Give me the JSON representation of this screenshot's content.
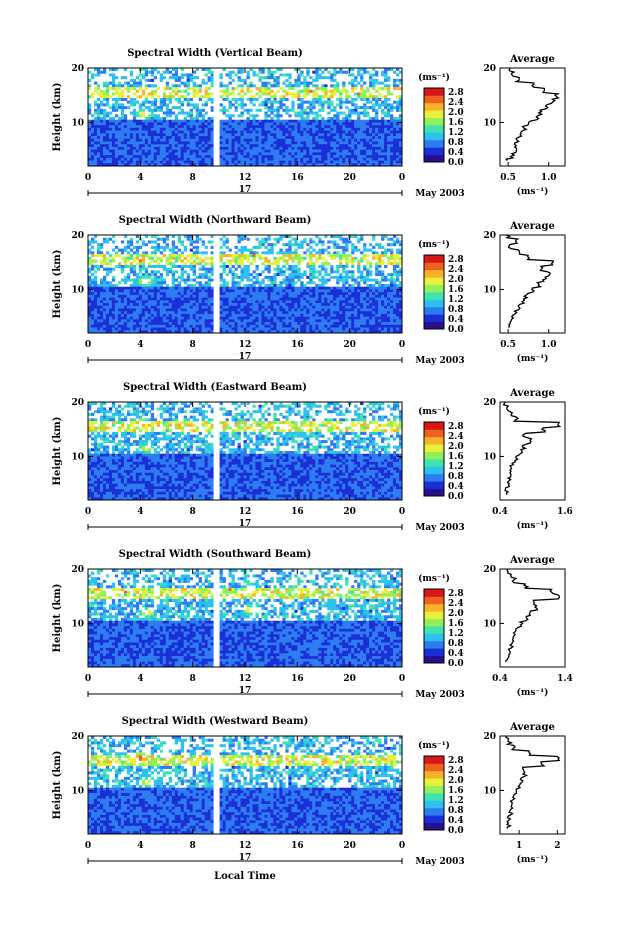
{
  "figure": {
    "month_label": "May 2003",
    "xlabel": "Local Time",
    "day_label": "17",
    "colorbar_unit": "(ms⁻¹)",
    "colorbar_ticks": [
      "2.8",
      "2.4",
      "2.0",
      "1.6",
      "1.2",
      "0.8",
      "0.4",
      "0.0"
    ],
    "ylabel": "Height (km)",
    "avg_title": "Average",
    "avg_xlabel": "(ms⁻¹)",
    "colors": {
      "white_gap": "#ffffff",
      "colormap": [
        "#2a0f8c",
        "#1b2fd6",
        "#2d7cf2",
        "#2cc1ef",
        "#3fe3b0",
        "#8ff05a",
        "#e8f03a",
        "#f7b22a",
        "#f06020",
        "#d81818"
      ]
    }
  },
  "chart_data": [
    {
      "type": "heatmap",
      "title": "Spectral Width (Vertical Beam)",
      "xlabel": "Local Time",
      "ylabel": "Height (km)",
      "x_ticks": [
        "0",
        "4",
        "8",
        "12",
        "16",
        "20",
        "0"
      ],
      "y_ticks": [
        "20",
        "10"
      ],
      "xlim": [
        0,
        24
      ],
      "ylim": [
        2,
        20
      ],
      "colorbar": {
        "label": "(ms⁻¹)",
        "range": [
          0.0,
          2.8
        ]
      },
      "data_gap_hours": [
        9.6,
        10.0
      ],
      "features": [
        {
          "time": 4.0,
          "height": 15.5,
          "value": 2.8
        },
        {
          "time": 4.3,
          "height": 11.5,
          "value": 2.2
        }
      ],
      "average_profile": {
        "title": "Average",
        "xlabel": "(ms⁻¹)",
        "x_ticks": [
          "0.5",
          "1.0"
        ],
        "xlim": [
          0.4,
          1.2
        ],
        "y_ticks": [
          "20",
          "10"
        ],
        "ylim": [
          2,
          20
        ],
        "height": [
          3,
          4,
          5,
          6,
          7,
          8,
          9,
          10,
          11,
          12,
          13,
          14,
          15,
          16,
          17,
          18,
          19,
          20
        ],
        "value": [
          0.5,
          0.55,
          0.6,
          0.6,
          0.62,
          0.66,
          0.7,
          0.75,
          0.85,
          0.9,
          0.98,
          1.05,
          1.1,
          0.95,
          0.8,
          0.62,
          0.56,
          0.52
        ]
      }
    },
    {
      "type": "heatmap",
      "title": "Spectral Width (Northward Beam)",
      "xlabel": "Local Time",
      "ylabel": "Height (km)",
      "x_ticks": [
        "0",
        "4",
        "8",
        "12",
        "16",
        "20",
        "0"
      ],
      "y_ticks": [
        "20",
        "10"
      ],
      "xlim": [
        0,
        24
      ],
      "ylim": [
        2,
        20
      ],
      "colorbar": {
        "label": "(ms⁻¹)",
        "range": [
          0.0,
          2.8
        ]
      },
      "data_gap_hours": [
        9.6,
        10.0
      ],
      "features": [
        {
          "time": 4.0,
          "height": 15.5,
          "value": 2.8
        },
        {
          "time": 4.4,
          "height": 11.5,
          "value": 2.2
        }
      ],
      "average_profile": {
        "title": "Average",
        "xlabel": "(ms⁻¹)",
        "x_ticks": [
          "0.5",
          "1.0"
        ],
        "xlim": [
          0.4,
          1.2
        ],
        "y_ticks": [
          "20",
          "10"
        ],
        "ylim": [
          2,
          20
        ],
        "height": [
          3,
          4,
          5,
          6,
          7,
          8,
          9,
          10,
          11,
          12,
          13,
          14,
          15,
          16,
          17,
          18,
          19,
          20
        ],
        "value": [
          0.5,
          0.52,
          0.56,
          0.6,
          0.64,
          0.68,
          0.72,
          0.8,
          0.88,
          0.95,
          1.0,
          0.92,
          1.05,
          0.75,
          0.62,
          0.52,
          0.6,
          0.5
        ]
      }
    },
    {
      "type": "heatmap",
      "title": "Spectral Width (Eastward Beam)",
      "xlabel": "Local Time",
      "ylabel": "Height (km)",
      "x_ticks": [
        "0",
        "4",
        "8",
        "12",
        "16",
        "20",
        "0"
      ],
      "y_ticks": [
        "20",
        "10"
      ],
      "xlim": [
        0,
        24
      ],
      "ylim": [
        2,
        20
      ],
      "colorbar": {
        "label": "(ms⁻¹)",
        "range": [
          0.0,
          2.8
        ]
      },
      "data_gap_hours": [
        9.6,
        10.0
      ],
      "features": [
        {
          "time": 4.0,
          "height": 16.0,
          "value": 2.8
        },
        {
          "time": 4.5,
          "height": 11.5,
          "value": 2.0
        },
        {
          "time": 21.0,
          "height": 16.0,
          "value": 2.4
        }
      ],
      "average_profile": {
        "title": "Average",
        "xlabel": "(ms⁻¹)",
        "x_ticks": [
          "0.4",
          "1.6"
        ],
        "xlim": [
          0.4,
          1.6
        ],
        "y_ticks": [
          "20",
          "10"
        ],
        "ylim": [
          2,
          20
        ],
        "height": [
          3,
          4,
          5,
          6,
          7,
          8,
          9,
          10,
          11,
          12,
          13,
          14,
          15,
          16,
          17,
          18,
          19,
          20
        ],
        "value": [
          0.5,
          0.52,
          0.55,
          0.58,
          0.6,
          0.62,
          0.65,
          0.72,
          0.8,
          0.85,
          0.95,
          0.85,
          1.2,
          1.5,
          0.7,
          0.6,
          0.52,
          0.5
        ]
      }
    },
    {
      "type": "heatmap",
      "title": "Spectral Width (Southward Beam)",
      "xlabel": "Local Time",
      "ylabel": "Height (km)",
      "x_ticks": [
        "0",
        "4",
        "8",
        "12",
        "16",
        "20",
        "0"
      ],
      "y_ticks": [
        "20",
        "10"
      ],
      "xlim": [
        0,
        24
      ],
      "ylim": [
        2,
        20
      ],
      "colorbar": {
        "label": "(ms⁻¹)",
        "range": [
          0.0,
          2.8
        ]
      },
      "data_gap_hours": [
        9.6,
        10.0
      ],
      "features": [
        {
          "time": 4.5,
          "height": 12.0,
          "value": 2.2
        },
        {
          "time": 12.5,
          "height": 12.5,
          "value": 2.4
        }
      ],
      "average_profile": {
        "title": "Average",
        "xlabel": "(ms⁻¹)",
        "x_ticks": [
          "0.4",
          "1.4"
        ],
        "xlim": [
          0.4,
          1.4
        ],
        "y_ticks": [
          "20",
          "10"
        ],
        "ylim": [
          2,
          20
        ],
        "height": [
          3,
          4,
          5,
          6,
          7,
          8,
          9,
          10,
          11,
          12,
          13,
          14,
          15,
          16,
          17,
          18,
          19,
          20
        ],
        "value": [
          0.5,
          0.52,
          0.55,
          0.58,
          0.6,
          0.62,
          0.66,
          0.72,
          0.8,
          0.88,
          0.95,
          0.9,
          1.3,
          1.2,
          0.8,
          0.62,
          0.55,
          0.5
        ]
      }
    },
    {
      "type": "heatmap",
      "title": "Spectral Width (Westward Beam)",
      "xlabel": "Local Time",
      "ylabel": "Height (km)",
      "x_ticks": [
        "0",
        "4",
        "8",
        "12",
        "16",
        "20",
        "0"
      ],
      "y_ticks": [
        "20",
        "10"
      ],
      "xlim": [
        0,
        24
      ],
      "ylim": [
        2,
        20
      ],
      "colorbar": {
        "label": "(ms⁻¹)",
        "range": [
          0.0,
          2.8
        ]
      },
      "data_gap_hours": [
        9.6,
        10.0
      ],
      "features": [
        {
          "time": 4.0,
          "height": 16.0,
          "value": 2.8
        },
        {
          "time": 4.5,
          "height": 11.5,
          "value": 2.2
        }
      ],
      "average_profile": {
        "title": "Average",
        "xlabel": "(ms⁻¹)",
        "x_ticks": [
          "1",
          "2"
        ],
        "xlim": [
          0.5,
          2.2
        ],
        "y_ticks": [
          "20",
          "10"
        ],
        "ylim": [
          2,
          20
        ],
        "height": [
          3,
          4,
          5,
          6,
          7,
          8,
          9,
          10,
          11,
          12,
          13,
          14,
          15,
          16,
          17,
          18,
          19,
          20
        ],
        "value": [
          0.7,
          0.72,
          0.75,
          0.78,
          0.8,
          0.82,
          0.85,
          0.9,
          1.0,
          1.05,
          1.15,
          1.1,
          1.6,
          2.0,
          1.3,
          0.85,
          0.75,
          0.7
        ]
      }
    }
  ]
}
